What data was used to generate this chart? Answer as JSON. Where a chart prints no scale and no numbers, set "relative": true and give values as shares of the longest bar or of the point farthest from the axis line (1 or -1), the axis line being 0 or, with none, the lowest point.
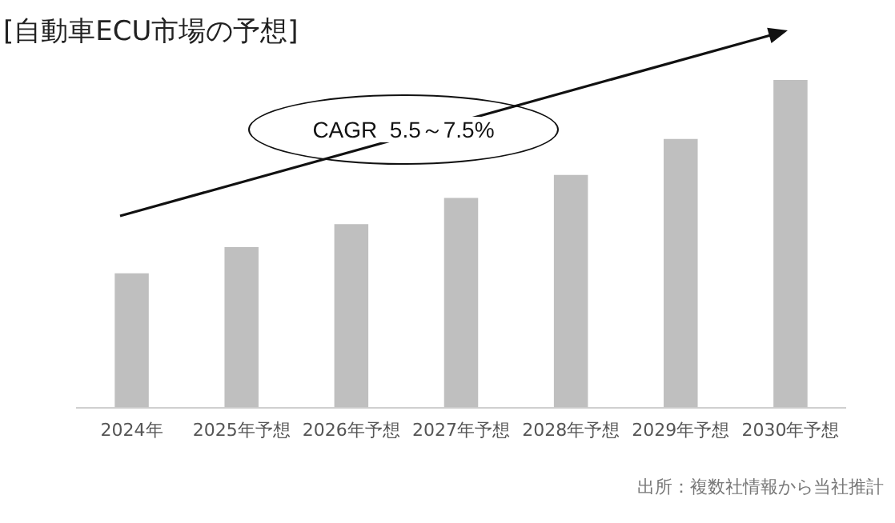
{
  "chart_data": {
    "type": "bar",
    "title": "[自動車ECU市場の予想]",
    "relative": true,
    "categories": [
      "2024年",
      "2025年予想",
      "2026年予想",
      "2027年予想",
      "2028年予想",
      "2029年予想",
      "2030年予想"
    ],
    "series": [
      {
        "color": "#bfbfbf",
        "values": [
          0.41,
          0.49,
          0.56,
          0.64,
          0.71,
          0.82,
          1
        ]
      }
    ],
    "grid": false,
    "legend": false,
    "annotations": [
      "CAGR  5.5～7.5%",
      "出所：複数社情報から当社推計"
    ]
  }
}
